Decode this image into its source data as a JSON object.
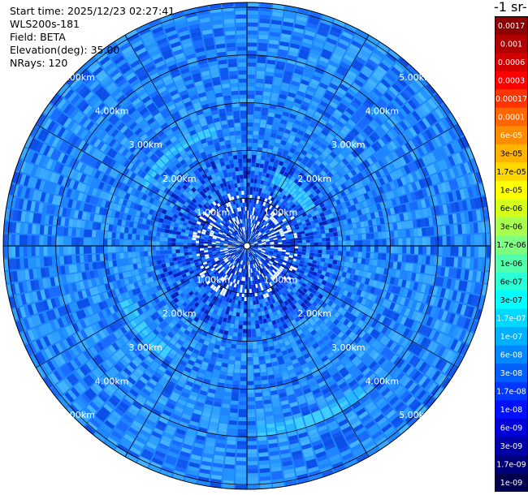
{
  "header": {
    "start_time_label": "Start time:",
    "start_time": "2025/12/23 02:27:41",
    "instrument": "WLS200s-181",
    "field_label": "Field:",
    "field": "BETA",
    "elevation_label": "Elevation(deg):",
    "elevation": "35.00",
    "nrays_label": "NRays:",
    "nrays": "120"
  },
  "colorbar": {
    "unit_fragment": "-1 sr-",
    "ticks": [
      "0.0017",
      "0.001",
      "0.0006",
      "0.0003",
      "0.00017",
      "0.0001",
      "6e-05",
      "3e-05",
      "1.7e-05",
      "1e-05",
      "6e-06",
      "3e-06",
      "1.7e-06",
      "1e-06",
      "6e-07",
      "3e-07",
      "1.7e-07",
      "1e-07",
      "6e-08",
      "3e-08",
      "1.7e-08",
      "1e-08",
      "6e-09",
      "3e-09",
      "1.7e-09",
      "1e-09"
    ],
    "colors": [
      "#8b0000",
      "#b00000",
      "#d40000",
      "#ff0000",
      "#ff3300",
      "#ff6600",
      "#ff8c00",
      "#ffb300",
      "#ffd700",
      "#ffff00",
      "#d4ff1a",
      "#a8ff4d",
      "#7dff80",
      "#52ffad",
      "#2bffd8",
      "#00ffff",
      "#00d8ff",
      "#00b0ff",
      "#0088ff",
      "#0060ff",
      "#0038ff",
      "#0010ff",
      "#0000d8",
      "#0000a8",
      "#00007a",
      "#00004d"
    ]
  },
  "chart_data": {
    "type": "heatmap",
    "projection": "polar PPI",
    "range_rings_km": [
      1,
      2,
      3,
      4,
      5
    ],
    "ring_labels": [
      "1.00km",
      "2.00km",
      "3.00km",
      "4.00km",
      "5.00km"
    ],
    "max_range_km": 5.1,
    "nrays": 120,
    "elevation_deg": 35.0,
    "field": "BETA",
    "value_range": [
      1e-09,
      0.0017
    ],
    "log_scale": true,
    "typical_beta_inner_km_0_to_1": 1.7e-08,
    "typical_beta_outer_km_1_to_5": 1e-07,
    "enhanced_arc_beta": 3e-07
  }
}
